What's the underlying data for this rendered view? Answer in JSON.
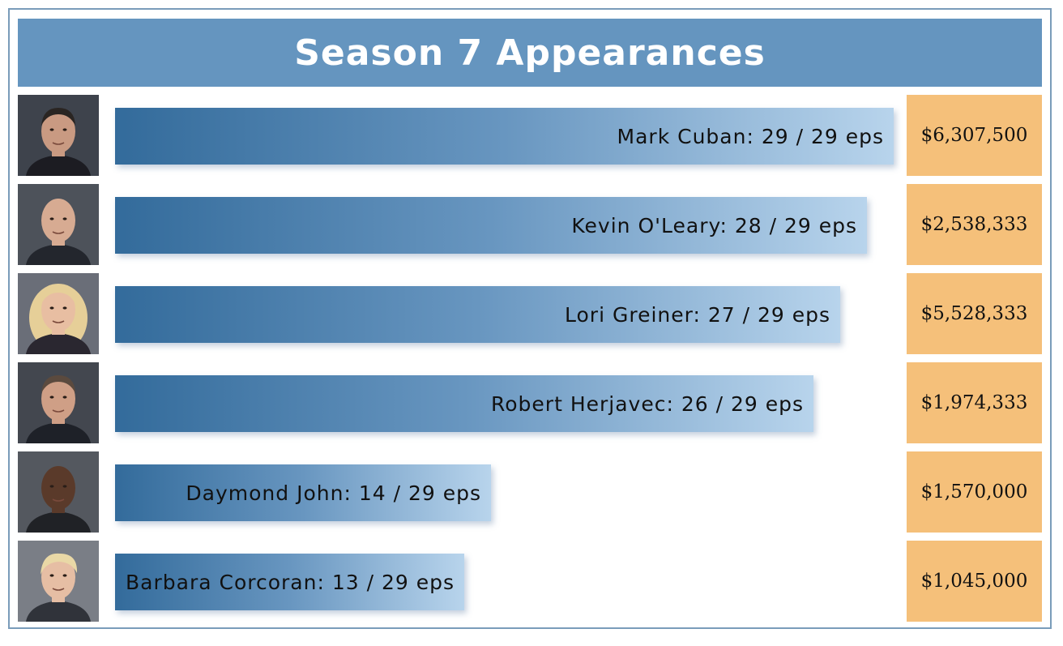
{
  "header": {
    "title": "Season 7 Appearances"
  },
  "chart_data": {
    "type": "bar",
    "orientation": "horizontal",
    "title": "Season 7 Appearances",
    "total_episodes": 29,
    "xlim": [
      0,
      29
    ],
    "categories": [
      "Mark Cuban",
      "Kevin O'Leary",
      "Lori Greiner",
      "Robert Herjavec",
      "Daymond John",
      "Barbara Corcoran"
    ],
    "values": [
      29,
      28,
      27,
      26,
      14,
      13
    ],
    "bar_labels": [
      "Mark Cuban: 29 / 29 eps",
      "Kevin O'Leary: 28 / 29 eps",
      "Lori Greiner: 27 / 29 eps",
      "Robert Herjavec: 26 / 29 eps",
      "Daymond John: 14 / 29 eps",
      "Barbara Corcoran: 13 / 29 eps"
    ],
    "amounts": [
      "$6,307,500",
      "$2,538,333",
      "$5,528,333",
      "$1,974,333",
      "$1,570,000",
      "$1,045,000"
    ],
    "avatars": [
      "mark-cuban-portrait",
      "kevin-oleary-portrait",
      "lori-greiner-portrait",
      "robert-herjavec-portrait",
      "daymond-john-portrait",
      "barbara-corcoran-portrait"
    ],
    "colors": {
      "header": "#6595bf",
      "bar_start": "#336b9b",
      "bar_end": "#b8d4ec",
      "amount_bg": "#f5c07a",
      "border": "#7a9cba"
    }
  }
}
